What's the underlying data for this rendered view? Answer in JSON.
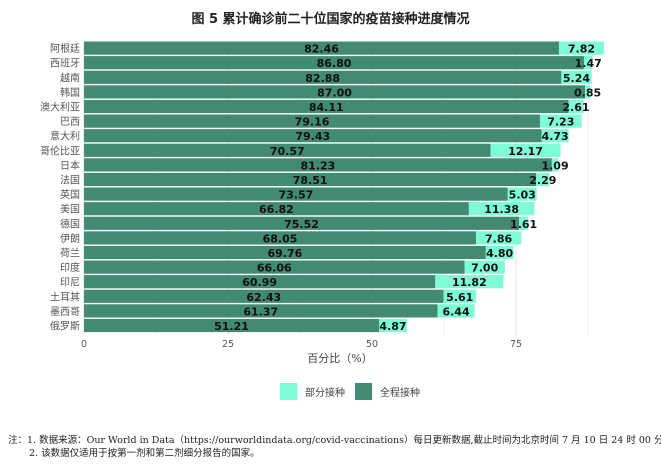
{
  "title": "图 5  累计确诊前二十位国家的疫苗接种进度情况",
  "chart_data": {
    "type": "bar",
    "orientation": "horizontal",
    "stacked": true,
    "title": "图 5  累计确诊前二十位国家的疫苗接种进度情况",
    "xlabel": "百分比（%）",
    "ylabel": "",
    "xlim": [
      0,
      90.3
    ],
    "xticks": [
      "0",
      "25",
      "50",
      "75"
    ],
    "xtick_values": [
      0,
      25,
      50,
      75
    ],
    "grid": true,
    "legend_position": "bottom",
    "categories": [
      "阿根廷",
      "西班牙",
      "越南",
      "韩国",
      "澳大利亚",
      "巴西",
      "意大利",
      "哥伦比亚",
      "日本",
      "法国",
      "英国",
      "美国",
      "德国",
      "伊朗",
      "荷兰",
      "印度",
      "印尼",
      "土耳其",
      "墨西哥",
      "俄罗斯"
    ],
    "series": [
      {
        "name": "全程接种",
        "color": "#438a72",
        "values": [
          82.46,
          86.8,
          82.88,
          87.0,
          84.11,
          79.16,
          79.43,
          70.57,
          81.23,
          78.51,
          73.57,
          66.82,
          75.52,
          68.05,
          69.76,
          66.06,
          60.99,
          62.43,
          61.37,
          51.21
        ]
      },
      {
        "name": "部分接种",
        "color": "#7efcd6",
        "values": [
          7.82,
          1.47,
          5.24,
          0.85,
          2.61,
          7.23,
          4.73,
          12.17,
          1.09,
          2.29,
          5.03,
          11.38,
          1.61,
          7.86,
          4.8,
          7.0,
          11.82,
          5.61,
          6.44,
          4.87
        ]
      }
    ]
  },
  "legend": [
    {
      "label": "部分接种",
      "color": "#7efcd6"
    },
    {
      "label": "全程接种",
      "color": "#438a72"
    }
  ],
  "notes": {
    "line1": "注：1. 数据来源：Our World in Data（https://ourworldindata.org/covid-vaccinations）每日更新数据,截止时间为北京时间 7 月 10 日 24 时 00 分。",
    "line2": "2. 该数据仅适用于按第一剂和第二剂细分报告的国家。"
  }
}
